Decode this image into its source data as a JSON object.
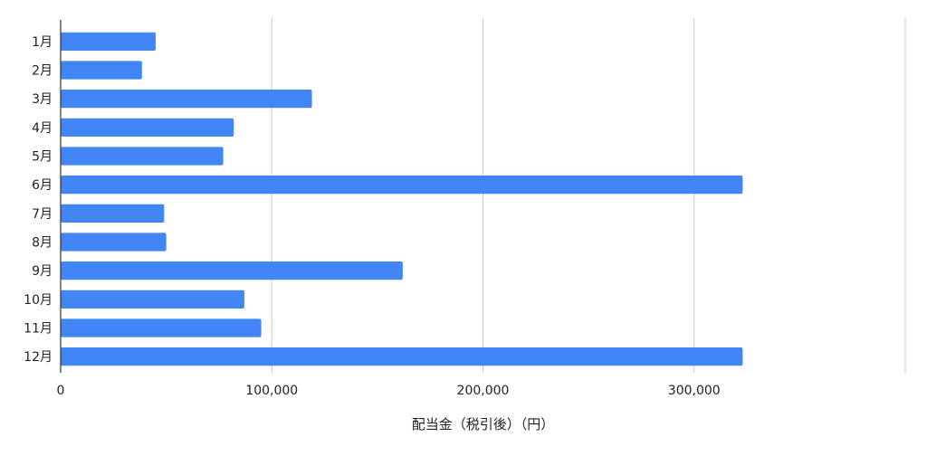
{
  "chart_data": {
    "type": "bar",
    "orientation": "horizontal",
    "categories": [
      "1月",
      "2月",
      "3月",
      "4月",
      "5月",
      "6月",
      "7月",
      "8月",
      "9月",
      "10月",
      "11月",
      "12月"
    ],
    "series": [
      {
        "values": [
          45000,
          38500,
          119000,
          82000,
          77000,
          323000,
          49000,
          50000,
          162000,
          87000,
          95000,
          323000
        ],
        "color": "#4285f4"
      }
    ],
    "xlabel": "配当金（税引後）（円）",
    "ylabel": "",
    "xlim": [
      0,
      400000
    ],
    "xticks": [
      0,
      100000,
      200000,
      300000
    ],
    "xtick_labels": [
      "0",
      "100,000",
      "200,000",
      "300,000"
    ],
    "grid": true,
    "legend": "none"
  }
}
